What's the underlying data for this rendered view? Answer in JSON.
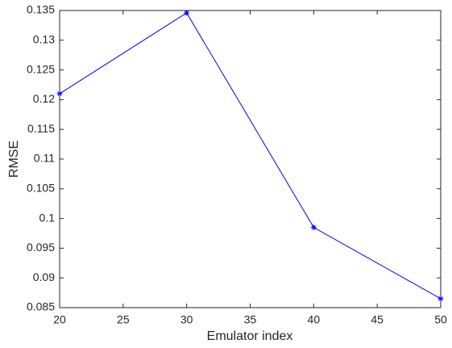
{
  "chart_data": {
    "type": "line",
    "xlabel": "Emulator index",
    "ylabel": "RMSE",
    "x": [
      20,
      30,
      40,
      50
    ],
    "series": [
      {
        "color": "#0000ff",
        "marker": "*",
        "values": [
          0.121,
          0.1346,
          0.0985,
          0.0865
        ]
      }
    ],
    "xlim": [
      20,
      50
    ],
    "xticks": [
      20,
      25,
      30,
      35,
      40,
      45,
      50
    ],
    "ylim": [
      0.085,
      0.135
    ],
    "yticks": [
      0.085,
      0.09,
      0.095,
      0.1,
      0.105,
      0.11,
      0.115,
      0.12,
      0.125,
      0.13,
      0.135
    ],
    "grid": false
  }
}
